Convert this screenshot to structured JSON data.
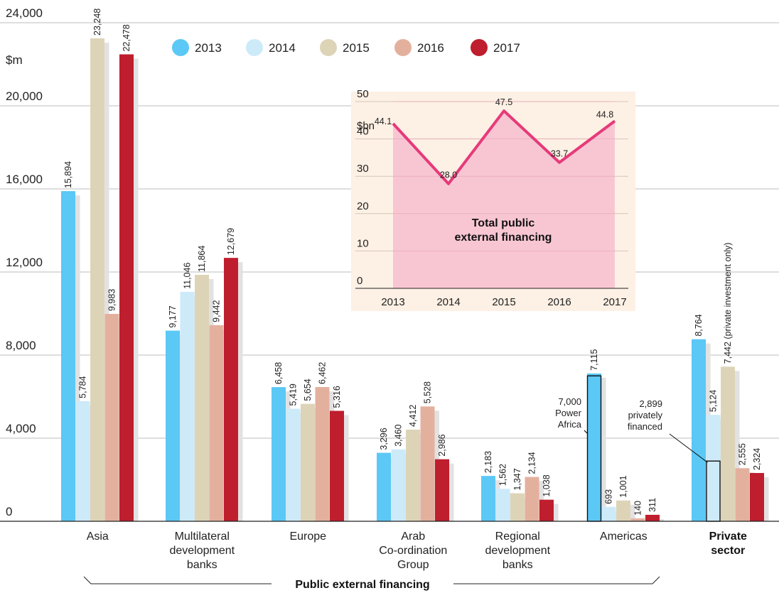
{
  "chart_data": [
    {
      "type": "bar",
      "ylabel": "$m",
      "ylim": [
        0,
        24000
      ],
      "yticks": [
        "0",
        "4,000",
        "8,000",
        "12,000",
        "16,000",
        "20,000",
        "24,000"
      ],
      "grid": true,
      "legend_position": "top",
      "categories": [
        "Asia",
        "Multilateral development banks",
        "Europe",
        "Arab Co-ordination Group",
        "Regional development banks",
        "Americas",
        "Private sector"
      ],
      "category_lines": [
        [
          "Asia"
        ],
        [
          "Multilateral",
          "development",
          "banks"
        ],
        [
          "Europe"
        ],
        [
          "Arab",
          "Co-ordination",
          "Group"
        ],
        [
          "Regional",
          "development",
          "banks"
        ],
        [
          "Americas"
        ],
        [
          "Private",
          "sector"
        ]
      ],
      "series": [
        {
          "name": "2013",
          "color": "#5bc8f5",
          "values": [
            15894,
            9177,
            6458,
            3296,
            2183,
            7115,
            8764
          ],
          "labels": [
            "15,894",
            "9,177",
            "6,458",
            "3,296",
            "2,183",
            "7,115",
            "8,764"
          ]
        },
        {
          "name": "2014",
          "color": "#cdeaf9",
          "values": [
            5784,
            11046,
            5419,
            3460,
            1562,
            693,
            5124
          ],
          "labels": [
            "5,784",
            "11,046",
            "5,419",
            "3,460",
            "1,562",
            "693",
            "5,124"
          ]
        },
        {
          "name": "2015",
          "color": "#ddd4b7",
          "values": [
            23248,
            11864,
            5654,
            4412,
            1347,
            1001,
            7442
          ],
          "labels": [
            "23,248",
            "11,864",
            "5,654",
            "4,412",
            "1,347",
            "1,001",
            "7,442 (private investment only)"
          ]
        },
        {
          "name": "2016",
          "color": "#e4b09e",
          "values": [
            9983,
            9442,
            6462,
            5528,
            2134,
            140,
            2555
          ],
          "labels": [
            "9,983",
            "9,442",
            "6,462",
            "5,528",
            "2,134",
            "140",
            "2,555"
          ]
        },
        {
          "name": "2017",
          "color": "#be1e2d",
          "values": [
            22478,
            12679,
            5316,
            2986,
            1038,
            311,
            2324
          ],
          "labels": [
            "22,478",
            "12,679",
            "5,316",
            "2,986",
            "1,038",
            "311",
            "2,324"
          ]
        }
      ],
      "annotations": [
        {
          "category": "Americas",
          "series": "2013",
          "value": 7000,
          "lines": [
            "7,000",
            "Power",
            "Africa"
          ]
        },
        {
          "category": "Private sector",
          "series": "2014",
          "value": 2899,
          "lines": [
            "2,899",
            "privately",
            "financed"
          ]
        }
      ],
      "group_label": "Public external financing"
    },
    {
      "type": "area",
      "title_lines": [
        "Total public",
        "external financing"
      ],
      "ylabel": "$bn",
      "ylim": [
        0,
        50
      ],
      "yticks": [
        "0",
        "10",
        "20",
        "30",
        "40",
        "50"
      ],
      "x": [
        "2013",
        "2014",
        "2015",
        "2016",
        "2017"
      ],
      "values": [
        44.1,
        28.0,
        47.5,
        33.7,
        44.8
      ],
      "labels": [
        "44.1",
        "28.0",
        "47.5",
        "33.7",
        "44.8"
      ],
      "line_color": "#e63a7a",
      "fill_color": "#f8c6d3",
      "background_color": "#fdf0e4"
    }
  ]
}
